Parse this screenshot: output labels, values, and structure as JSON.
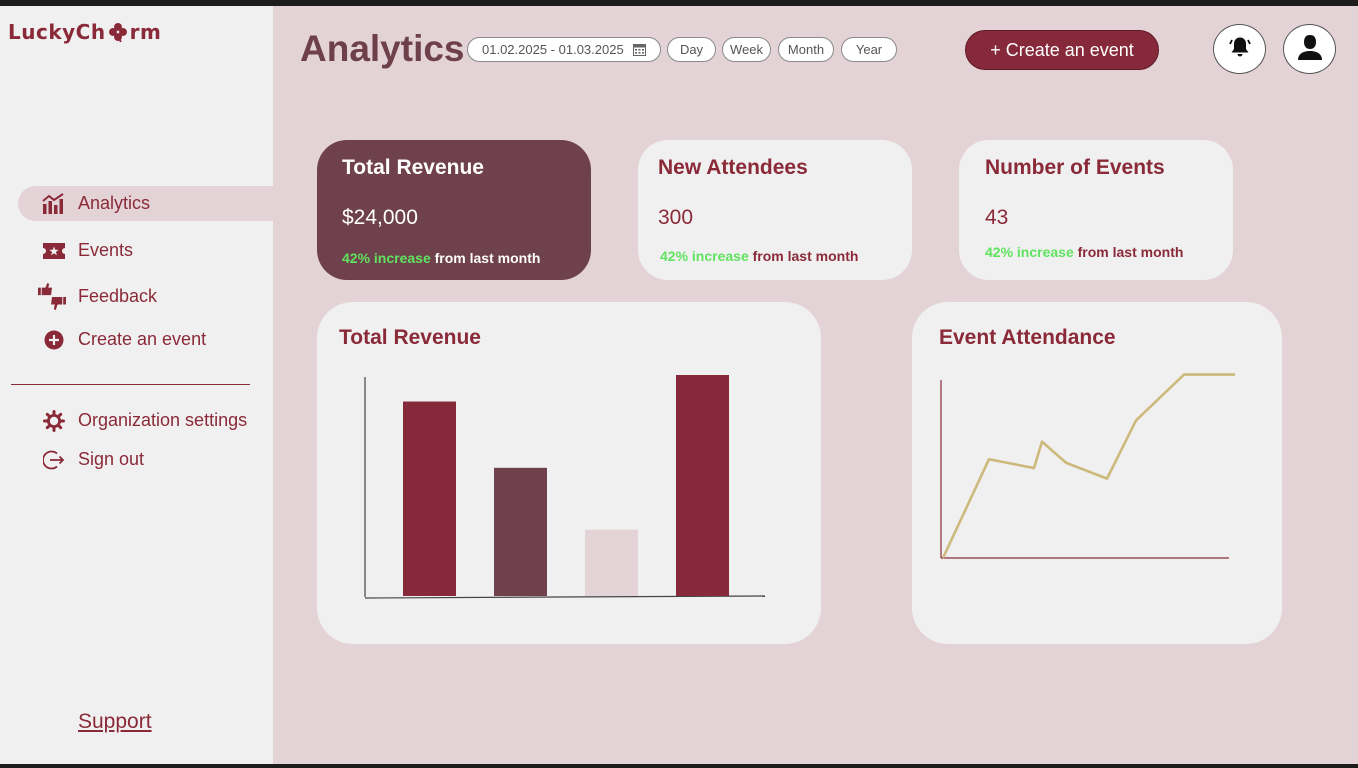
{
  "brand": {
    "logo_left": "LuckyCh",
    "logo_right": "rm"
  },
  "sidebar": {
    "items": [
      {
        "label": "Analytics",
        "icon": "bar-chart-icon",
        "active": true
      },
      {
        "label": "Events",
        "icon": "ticket-icon"
      },
      {
        "label": "Feedback",
        "icon": "thumbs-icon"
      },
      {
        "label": "Create an event",
        "icon": "plus-circle-icon"
      }
    ],
    "secondary": [
      {
        "label": "Organization settings",
        "icon": "gear-icon"
      },
      {
        "label": "Sign out",
        "icon": "sign-out-icon"
      }
    ],
    "support": "Support"
  },
  "header": {
    "title": "Analytics",
    "date_range": "01.02.2025 - 01.03.2025",
    "periods": [
      "Day",
      "Week",
      "Month",
      "Year"
    ],
    "create_button": "+ Create an event"
  },
  "stats": [
    {
      "title": "Total Revenue",
      "value": "$24,000",
      "increase": "42% increase",
      "suffix": " from last month"
    },
    {
      "title": "New Attendees",
      "value": "300",
      "increase": "42% increase",
      "suffix": " from last month"
    },
    {
      "title": "Number of Events",
      "value": "43",
      "increase": "42% increase",
      "suffix": " from last month"
    }
  ],
  "colors": {
    "primary": "#86293a",
    "accent_dark": "#6e414c",
    "light_bar": "#e4d3d6",
    "line": "#cdb97c",
    "increase": "#5fe35f"
  },
  "chart_data": [
    {
      "type": "bar",
      "title": "Total Revenue",
      "values": [
        88,
        58,
        30,
        100
      ],
      "ylim": [
        0,
        100
      ],
      "bar_colors": [
        "#86293a",
        "#6e414c",
        "#e4d3d6",
        "#86293a"
      ]
    },
    {
      "type": "line",
      "title": "Event Attendance",
      "x": [
        0,
        1,
        2,
        3,
        4,
        5,
        6,
        7,
        8,
        9,
        10
      ],
      "values": [
        0,
        56,
        54,
        51,
        66,
        54,
        45,
        78,
        104,
        104,
        104
      ],
      "ylim": [
        0,
        110
      ]
    }
  ]
}
